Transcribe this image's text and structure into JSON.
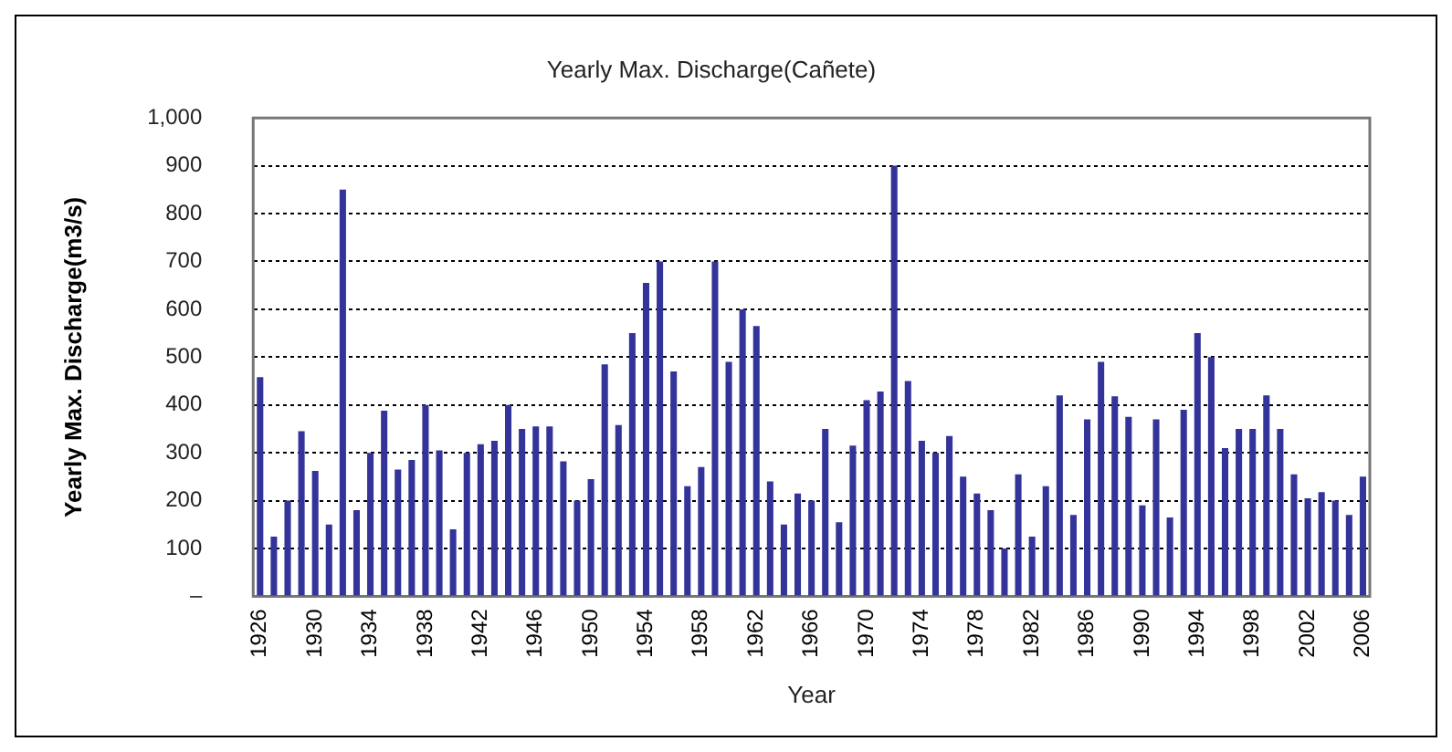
{
  "chart_data": {
    "type": "bar",
    "title": "Yearly Max. Discharge(Cañete)",
    "xlabel": "Year",
    "ylabel": "Yearly Max. Discharge(m3/s)",
    "categories": [
      "1926",
      null,
      null,
      null,
      "1930",
      null,
      null,
      null,
      "1934",
      null,
      null,
      null,
      "1938",
      null,
      null,
      null,
      "1942",
      null,
      null,
      null,
      "1946",
      null,
      null,
      null,
      "1950",
      null,
      null,
      null,
      "1954",
      null,
      null,
      null,
      "1958",
      null,
      null,
      null,
      "1962",
      null,
      null,
      null,
      "1966",
      null,
      null,
      null,
      "1970",
      null,
      null,
      null,
      "1974",
      null,
      null,
      null,
      "1978",
      null,
      null,
      null,
      "1982",
      null,
      null,
      null,
      "1986",
      null,
      null,
      null,
      "1990",
      null,
      null,
      null,
      "1994",
      null,
      null,
      null,
      "1998",
      null,
      null,
      null,
      "2002",
      null,
      null,
      null,
      "2006"
    ],
    "values": [
      458,
      125,
      200,
      345,
      262,
      150,
      850,
      180,
      300,
      388,
      265,
      285,
      400,
      305,
      140,
      300,
      318,
      325,
      400,
      350,
      355,
      355,
      282,
      200,
      245,
      485,
      358,
      550,
      655,
      700,
      470,
      230,
      270,
      700,
      490,
      600,
      565,
      240,
      150,
      215,
      200,
      350,
      155,
      315,
      410,
      428,
      900,
      450,
      325,
      300,
      335,
      250,
      215,
      180,
      100,
      255,
      125,
      230,
      420,
      170,
      370,
      490,
      418,
      375,
      190,
      370,
      165,
      390,
      550,
      500,
      310,
      350,
      350,
      420,
      350,
      255,
      205,
      218,
      200,
      170,
      250
    ],
    "color": "#333399",
    "ylim": [
      0,
      1000
    ],
    "yticks": [
      {
        "value": 0,
        "label": "–"
      },
      100,
      200,
      300,
      400,
      500,
      600,
      700,
      800,
      900,
      {
        "value": 1000,
        "label": "1,000"
      }
    ],
    "grid": "y"
  }
}
